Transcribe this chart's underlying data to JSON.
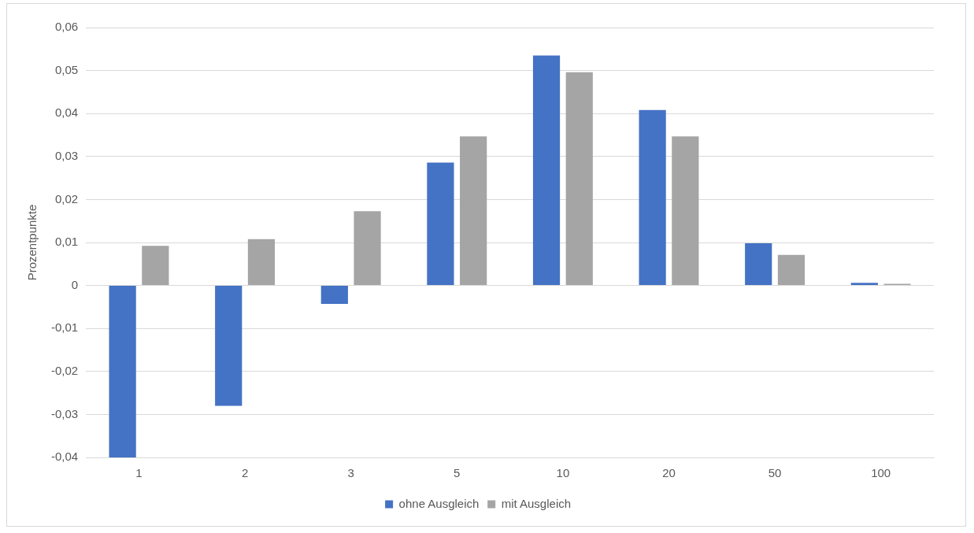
{
  "chart_data": {
    "type": "bar",
    "ylabel": "Prozentpunkte",
    "categories": [
      "1",
      "2",
      "3",
      "5",
      "10",
      "20",
      "50",
      "100"
    ],
    "series": [
      {
        "name": "ohne Ausgleich",
        "color": "#4472c4",
        "values": [
          -0.04,
          -0.028,
          -0.0043,
          0.0286,
          0.0535,
          0.0408,
          0.0098,
          0.0006
        ]
      },
      {
        "name": "mit Ausgleich",
        "color": "#a5a5a5",
        "values": [
          0.0092,
          0.0108,
          0.0173,
          0.0347,
          0.0496,
          0.0347,
          0.0071,
          0.0004
        ]
      }
    ],
    "ylim": [
      -0.04,
      0.06
    ],
    "yticks": [
      {
        "value": -0.04,
        "label": "-0,04"
      },
      {
        "value": -0.03,
        "label": "-0,03"
      },
      {
        "value": -0.02,
        "label": "-0,02"
      },
      {
        "value": -0.01,
        "label": "-0,01"
      },
      0,
      {
        "value": 0.01,
        "label": "0,01"
      },
      {
        "value": 0.02,
        "label": "0,02"
      },
      {
        "value": 0.03,
        "label": "0,03"
      },
      {
        "value": 0.04,
        "label": "0,04"
      },
      {
        "value": 0.05,
        "label": "0,05"
      },
      {
        "value": 0.06,
        "label": "0,06"
      }
    ],
    "grid": "y",
    "legend": "bottom"
  }
}
